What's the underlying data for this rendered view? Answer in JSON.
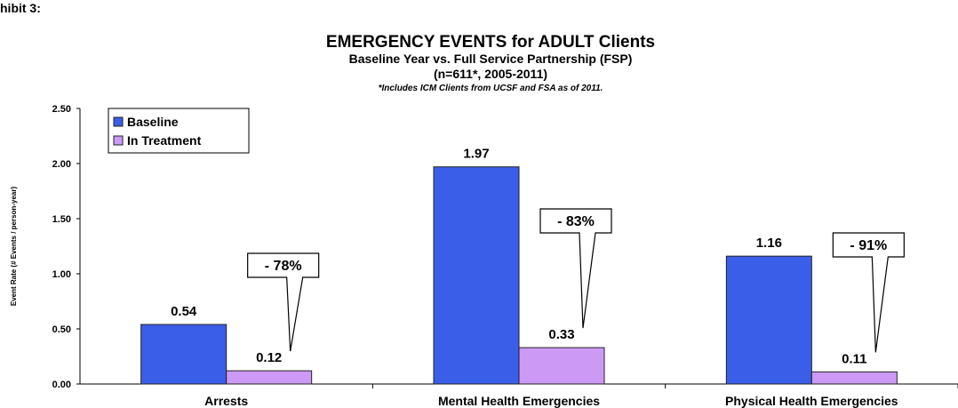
{
  "chart_data": {
    "type": "bar",
    "corner_text": "hibit 3:",
    "title": "EMERGENCY EVENTS for ADULT Clients",
    "subtitle": "Baseline Year vs. Full Service Partnership (FSP)",
    "sample_note": "(n=611*, 2005-2011)",
    "footnote": "*Includes ICM Clients from UCSF and FSA as of 2011.",
    "ylabel": "Event Rate (# Events / person-year)",
    "categories": [
      "Arrests",
      "Mental Health Emergencies",
      "Physical Health Emergencies"
    ],
    "series": [
      {
        "name": "Baseline",
        "color": "#3a5ee8",
        "values": [
          0.54,
          1.97,
          1.16
        ]
      },
      {
        "name": "In Treatment",
        "color": "#cc99f5",
        "values": [
          0.12,
          0.33,
          0.11
        ]
      }
    ],
    "annotations": [
      "- 78%",
      "- 83%",
      "- 91%"
    ],
    "ylim": [
      0,
      2.5
    ],
    "yticks": [
      {
        "value": 0,
        "label": "0.00"
      },
      {
        "value": 0.5,
        "label": "0.50"
      },
      {
        "value": 1,
        "label": "1.00"
      },
      {
        "value": 1.5,
        "label": "1.50"
      },
      {
        "value": 2,
        "label": "2.00"
      },
      {
        "value": 2.5,
        "label": "2.50"
      }
    ],
    "legend": "top-left"
  }
}
